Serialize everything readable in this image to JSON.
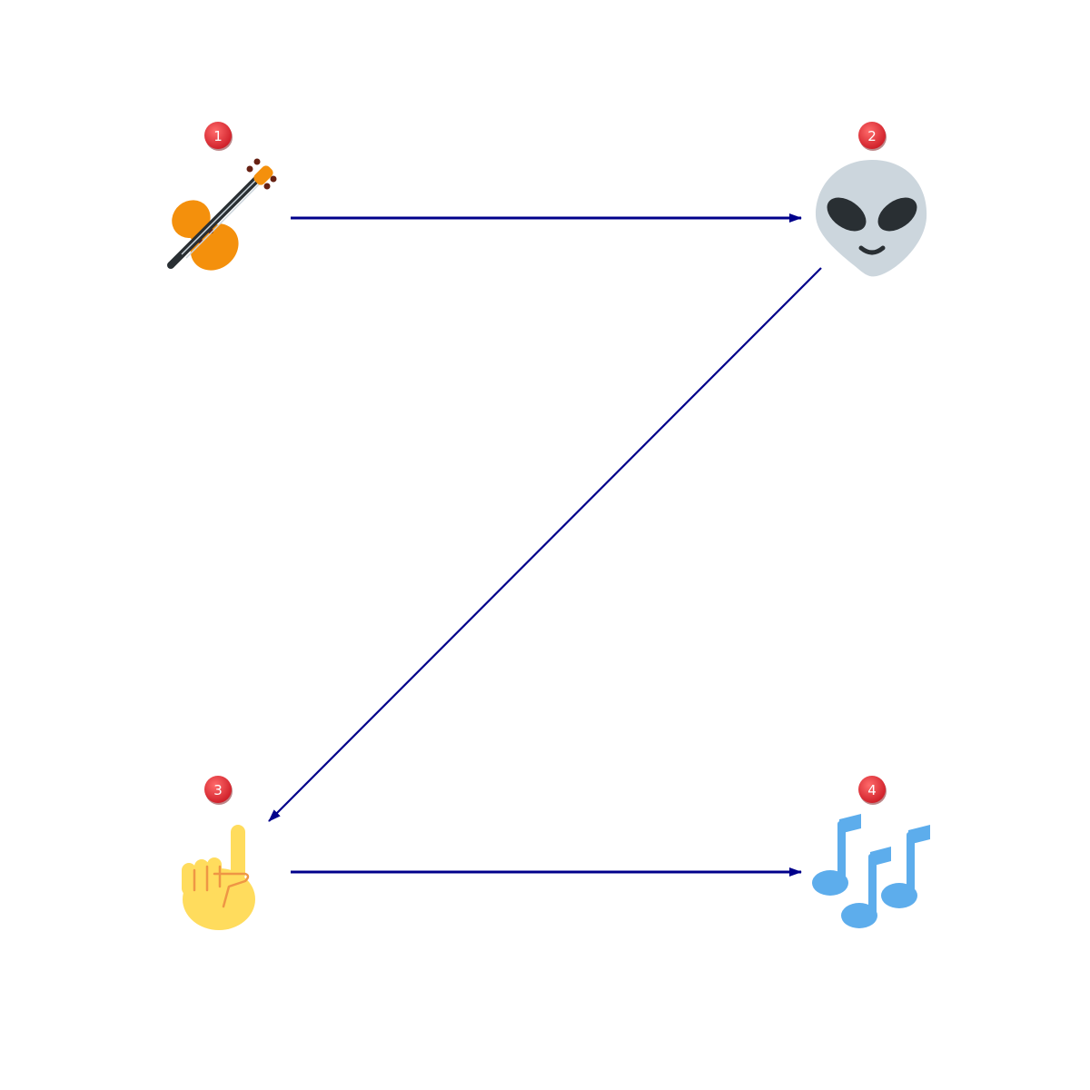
{
  "nodes": [
    {
      "id": "n1",
      "badge": "1",
      "icon": "violin-icon"
    },
    {
      "id": "n2",
      "badge": "2",
      "icon": "alien-icon"
    },
    {
      "id": "n3",
      "badge": "3",
      "icon": "pointing-up-hand-icon"
    },
    {
      "id": "n4",
      "badge": "4",
      "icon": "musical-notes-icon"
    }
  ],
  "edges": [
    {
      "from": "n1",
      "to": "n2"
    },
    {
      "from": "n2",
      "to": "n3"
    },
    {
      "from": "n3",
      "to": "n4"
    }
  ],
  "colors": {
    "arrow": "#00008b",
    "badge_fill": "#e8323c",
    "badge_text": "#ffffff",
    "violin": "#f4900c",
    "alien": "#ccd6dd",
    "hand": "#ffdc5d",
    "notes": "#5dadec"
  }
}
